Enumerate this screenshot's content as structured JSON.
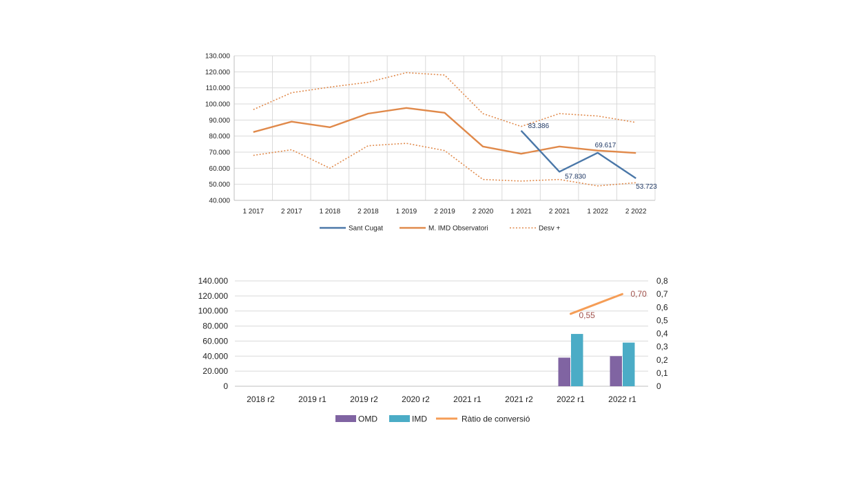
{
  "chart_data": [
    {
      "type": "line",
      "categories": [
        "1 2017",
        "2 2017",
        "1 2018",
        "2 2018",
        "1 2019",
        "2 2019",
        "2 2020",
        "1 2021",
        "2 2021",
        "1 2022",
        "2 2022"
      ],
      "ylim": [
        40000,
        130000
      ],
      "y_ticks": [
        "130.000",
        "120.000",
        "110.000",
        "100.000",
        "90.000",
        "80.000",
        "70.000",
        "60.000",
        "50.000",
        "40.000"
      ],
      "grid": true,
      "legend_position": "bottom",
      "series": [
        {
          "name": "Sant Cugat",
          "color": "#4a77a8",
          "style": "solid",
          "values": [
            null,
            null,
            null,
            null,
            null,
            null,
            null,
            83386,
            57830,
            69617,
            53723
          ],
          "labels": [
            null,
            null,
            null,
            null,
            null,
            null,
            null,
            "83.386",
            "57.830",
            "69.617",
            "53.723"
          ]
        },
        {
          "name": "M. IMD Observatori",
          "color": "#e0894a",
          "style": "solid",
          "values": [
            82500,
            89000,
            85500,
            94000,
            97500,
            94500,
            73500,
            69000,
            73500,
            71000,
            69500
          ]
        },
        {
          "name": "Desv +",
          "color": "#e0894a",
          "style": "dotted",
          "values": [
            96500,
            107000,
            110500,
            113500,
            119500,
            118000,
            94000,
            86000,
            94000,
            92500,
            88500
          ]
        },
        {
          "name": "",
          "color": "#e0894a",
          "style": "dotted",
          "legend": false,
          "values": [
            68000,
            71500,
            60000,
            74000,
            75500,
            71000,
            53000,
            52000,
            53000,
            49000,
            51000
          ]
        }
      ]
    },
    {
      "type": "bar",
      "categories": [
        "2018 r2",
        "2019 r1",
        "2019 r2",
        "2020 r2",
        "2021 r1",
        "2021 r2",
        "2022 r1",
        "2022 r1"
      ],
      "ylim": [
        0,
        140000
      ],
      "y_ticks": [
        "140.000",
        "120.000",
        "100.000",
        "80.000",
        "60.000",
        "40.000",
        "20.000",
        "0"
      ],
      "y2lim": [
        0,
        0.8
      ],
      "y2_ticks": [
        "0,8",
        "0,7",
        "0,6",
        "0,5",
        "0,4",
        "0,3",
        "0,2",
        "0,1",
        "0"
      ],
      "grid": true,
      "legend_position": "bottom",
      "series": [
        {
          "name": "OMD",
          "color": "#8064a2",
          "type": "bar",
          "values": [
            null,
            null,
            null,
            null,
            null,
            null,
            38000,
            40000
          ]
        },
        {
          "name": "IMD",
          "color": "#4bacc6",
          "type": "bar",
          "values": [
            null,
            null,
            null,
            null,
            null,
            null,
            69500,
            58000
          ]
        },
        {
          "name": "Ràtio de conversió",
          "color": "#f59d56",
          "type": "line",
          "axis": "secondary",
          "values": [
            null,
            null,
            null,
            null,
            null,
            null,
            0.55,
            0.7
          ],
          "labels": [
            null,
            null,
            null,
            null,
            null,
            null,
            "0,55",
            "0,70"
          ],
          "label_color": "#a0504a"
        }
      ]
    }
  ]
}
